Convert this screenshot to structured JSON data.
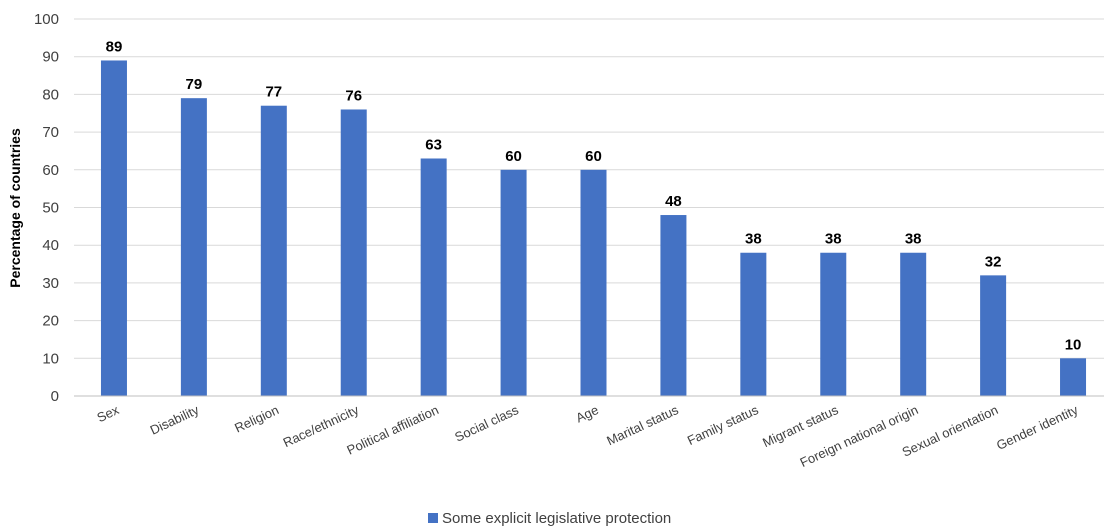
{
  "chart_data": {
    "type": "bar",
    "categories": [
      "Sex",
      "Disability",
      "Religion",
      "Race/ethnicity",
      "Political affiliation",
      "Social class",
      "Age",
      "Marital status",
      "Family status",
      "Migrant status",
      "Foreign national origin",
      "Sexual orientation",
      "Gender identity"
    ],
    "series": [
      {
        "name": "Some explicit legislative protection",
        "values": [
          89,
          79,
          77,
          76,
          63,
          60,
          60,
          48,
          38,
          38,
          38,
          32,
          10
        ],
        "color": "#4472c4"
      }
    ],
    "title": "",
    "xlabel": "",
    "ylabel": "Percentage of countries",
    "ylim": [
      0,
      100
    ],
    "yticks": [
      0,
      10,
      20,
      30,
      40,
      50,
      60,
      70,
      80,
      90,
      100
    ],
    "grid": true,
    "legend_position": "bottom",
    "data_labels": true
  }
}
